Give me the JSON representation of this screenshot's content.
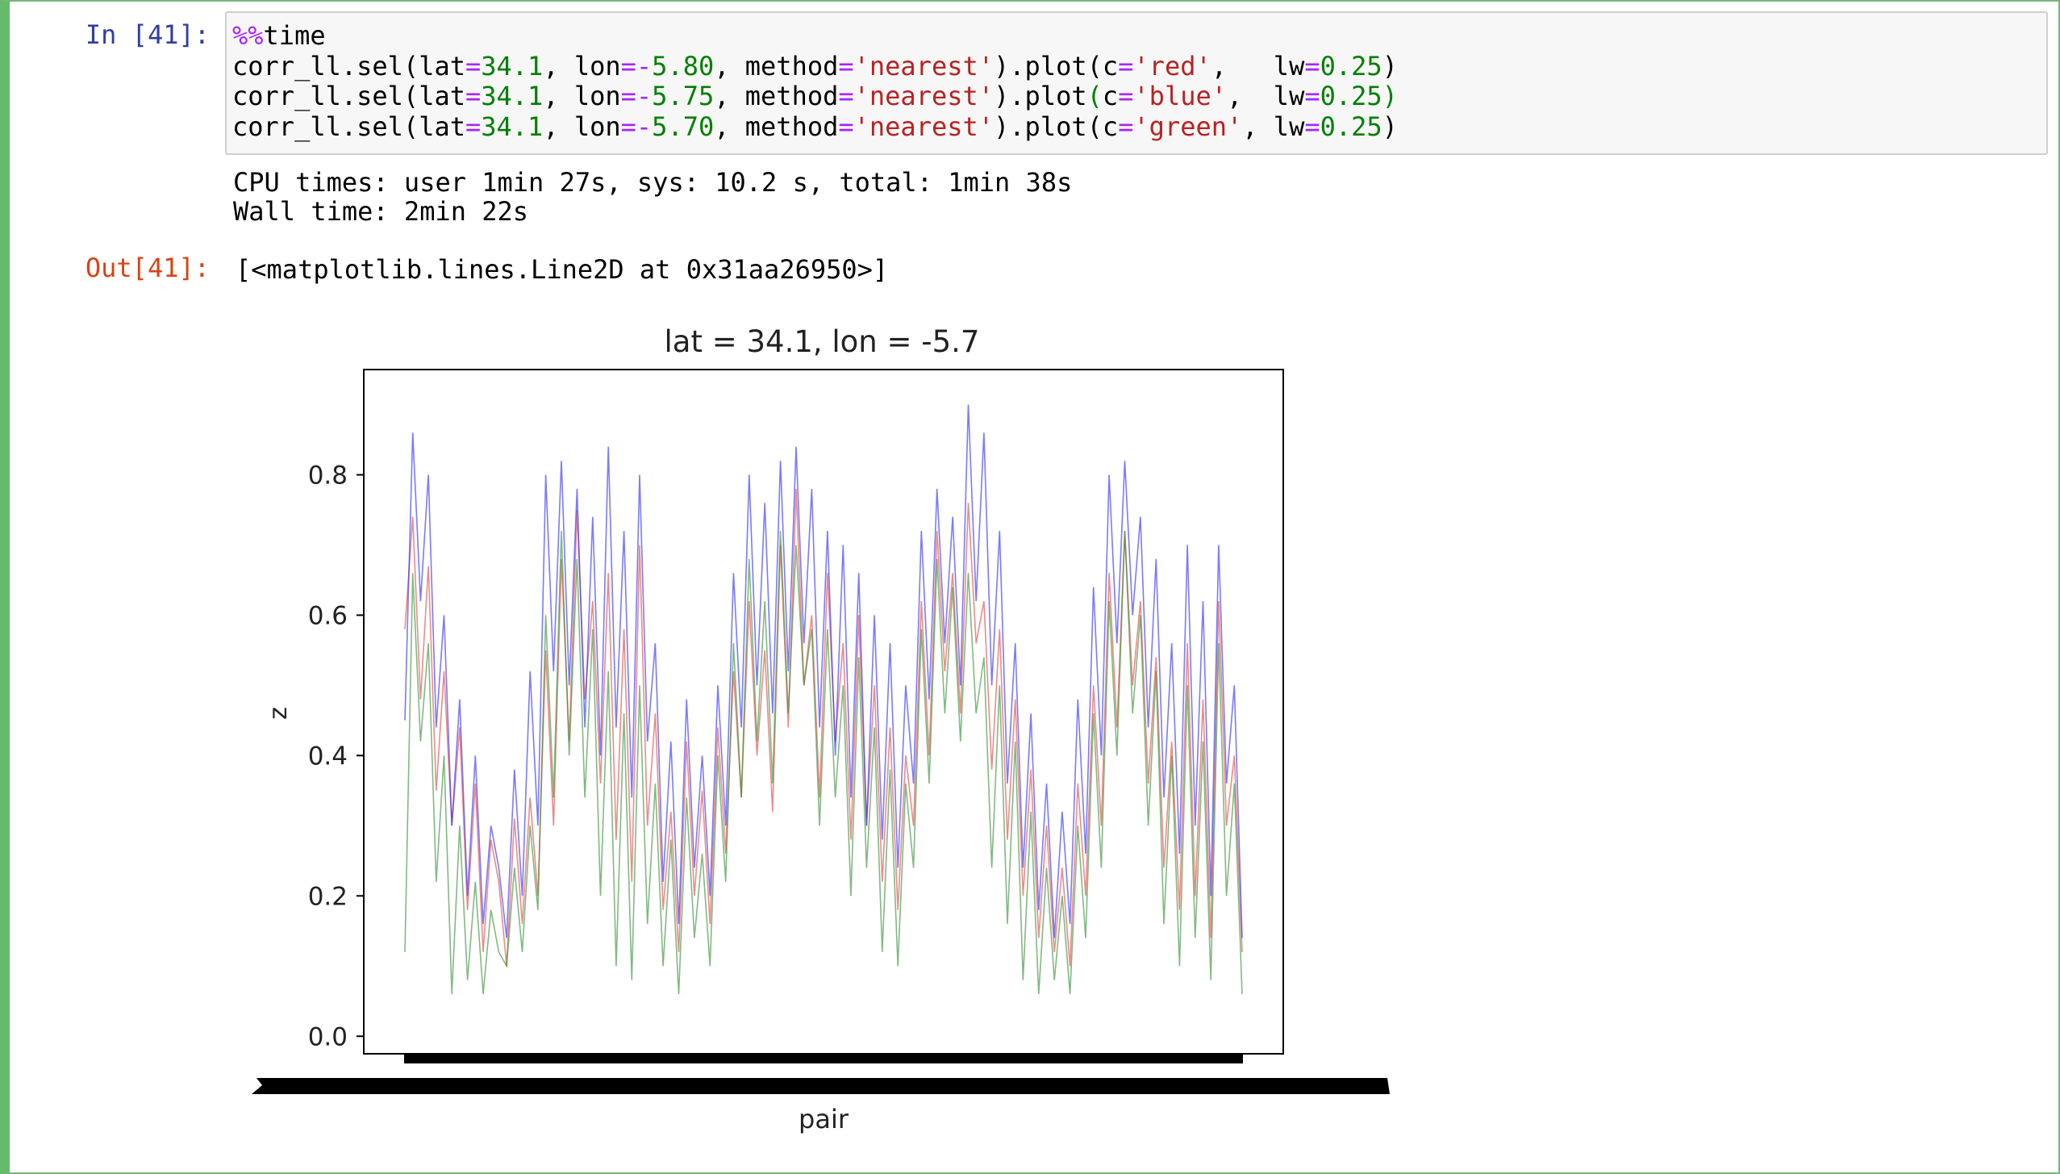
{
  "cell": {
    "in_prompt": "In [41]:",
    "out_prompt": "Out[41]:",
    "code_lines": [
      [
        [
          "magic",
          "%%"
        ],
        [
          "",
          "time"
        ]
      ],
      [
        [
          "",
          "corr_ll.sel(lat"
        ],
        [
          "op",
          "="
        ],
        [
          "num",
          "34.1"
        ],
        [
          "",
          ", lon"
        ],
        [
          "op",
          "=-"
        ],
        [
          "num",
          "5.80"
        ],
        [
          "",
          ", method"
        ],
        [
          "op",
          "="
        ],
        [
          "str",
          "'nearest'"
        ],
        [
          "",
          ").plot(c"
        ],
        [
          "op",
          "="
        ],
        [
          "str",
          "'red'"
        ],
        [
          "",
          ",   lw"
        ],
        [
          "op",
          "="
        ],
        [
          "num",
          "0.25"
        ],
        [
          "",
          ")"
        ]
      ],
      [
        [
          "",
          "corr_ll.sel(lat"
        ],
        [
          "op",
          "="
        ],
        [
          "num",
          "34.1"
        ],
        [
          "",
          ", lon"
        ],
        [
          "op",
          "=-"
        ],
        [
          "num",
          "5.75"
        ],
        [
          "",
          ", method"
        ],
        [
          "op",
          "="
        ],
        [
          "str",
          "'nearest'"
        ],
        [
          "",
          ").plot"
        ],
        [
          "num",
          "("
        ],
        [
          "",
          "c"
        ],
        [
          "op",
          "="
        ],
        [
          "str",
          "'blue'"
        ],
        [
          "",
          ",  lw"
        ],
        [
          "op",
          "="
        ],
        [
          "num",
          "0.25)"
        ]
      ],
      [
        [
          "",
          "corr_ll.sel(lat"
        ],
        [
          "op",
          "="
        ],
        [
          "num",
          "34.1"
        ],
        [
          "",
          ", lon"
        ],
        [
          "op",
          "=-"
        ],
        [
          "num",
          "5.70"
        ],
        [
          "",
          ", method"
        ],
        [
          "op",
          "="
        ],
        [
          "str",
          "'nearest'"
        ],
        [
          "",
          ").plot(c"
        ],
        [
          "op",
          "="
        ],
        [
          "str",
          "'green'"
        ],
        [
          "",
          ", lw"
        ],
        [
          "op",
          "="
        ],
        [
          "num",
          "0.25"
        ],
        [
          "",
          ")"
        ]
      ]
    ],
    "stream_output": [
      "CPU times: user 1min 27s, sys: 10.2 s, total: 1min 38s",
      "Wall time: 2min 22s"
    ],
    "repr_output": "[<matplotlib.lines.Line2D at 0x31aa26950>]"
  },
  "colors": {
    "cell_border": "#66bb6a",
    "in_prompt": "#303f9f",
    "out_prompt": "#d84315",
    "series_red": "#e0403a",
    "series_blue": "#2222ff",
    "series_green": "#2e8b2e"
  },
  "chart_data": {
    "type": "line",
    "title": "lat = 34.1, lon = -5.7",
    "xlabel": "pair",
    "ylabel": "z",
    "ylim": [
      -0.025,
      0.95
    ],
    "yticks": [
      "0.0",
      "0.2",
      "0.4",
      "0.6",
      "0.8"
    ],
    "grid": false,
    "legend": "none",
    "series": [
      {
        "color": "red",
        "values": [
          0.58,
          0.74,
          0.48,
          0.67,
          0.35,
          0.52,
          0.3,
          0.44,
          0.18,
          0.36,
          0.12,
          0.28,
          0.22,
          0.1,
          0.31,
          0.16,
          0.34,
          0.2,
          0.55,
          0.3,
          0.68,
          0.42,
          0.75,
          0.48,
          0.62,
          0.36,
          0.66,
          0.28,
          0.58,
          0.22,
          0.7,
          0.3,
          0.46,
          0.18,
          0.32,
          0.12,
          0.42,
          0.2,
          0.35,
          0.16,
          0.44,
          0.26,
          0.52,
          0.34,
          0.62,
          0.4,
          0.55,
          0.32,
          0.7,
          0.44,
          0.78,
          0.5,
          0.6,
          0.34,
          0.66,
          0.42,
          0.56,
          0.28,
          0.6,
          0.3,
          0.5,
          0.22,
          0.44,
          0.18,
          0.4,
          0.3,
          0.62,
          0.4,
          0.72,
          0.52,
          0.66,
          0.46,
          0.76,
          0.56,
          0.62,
          0.38,
          0.58,
          0.28,
          0.48,
          0.2,
          0.38,
          0.14,
          0.3,
          0.12,
          0.24,
          0.1,
          0.36,
          0.2,
          0.5,
          0.3,
          0.66,
          0.44,
          0.72,
          0.5,
          0.62,
          0.36,
          0.54,
          0.24,
          0.42,
          0.18,
          0.56,
          0.2,
          0.48,
          0.14,
          0.62,
          0.3,
          0.4,
          0.12
        ]
      },
      {
        "color": "blue",
        "values": [
          0.45,
          0.86,
          0.62,
          0.8,
          0.44,
          0.6,
          0.3,
          0.48,
          0.2,
          0.4,
          0.16,
          0.3,
          0.24,
          0.14,
          0.38,
          0.2,
          0.52,
          0.3,
          0.8,
          0.52,
          0.82,
          0.5,
          0.78,
          0.44,
          0.74,
          0.4,
          0.84,
          0.44,
          0.72,
          0.34,
          0.8,
          0.42,
          0.56,
          0.22,
          0.42,
          0.16,
          0.48,
          0.24,
          0.4,
          0.2,
          0.5,
          0.3,
          0.66,
          0.44,
          0.8,
          0.5,
          0.76,
          0.46,
          0.82,
          0.52,
          0.84,
          0.56,
          0.78,
          0.44,
          0.72,
          0.4,
          0.7,
          0.34,
          0.66,
          0.3,
          0.6,
          0.28,
          0.56,
          0.24,
          0.5,
          0.36,
          0.72,
          0.48,
          0.78,
          0.56,
          0.74,
          0.5,
          0.9,
          0.62,
          0.86,
          0.5,
          0.72,
          0.36,
          0.56,
          0.24,
          0.46,
          0.18,
          0.36,
          0.14,
          0.32,
          0.16,
          0.48,
          0.26,
          0.64,
          0.4,
          0.8,
          0.56,
          0.82,
          0.6,
          0.74,
          0.44,
          0.68,
          0.34,
          0.56,
          0.26,
          0.7,
          0.3,
          0.62,
          0.2,
          0.7,
          0.36,
          0.5,
          0.14
        ]
      },
      {
        "color": "green",
        "values": [
          0.12,
          0.66,
          0.42,
          0.56,
          0.22,
          0.4,
          0.06,
          0.3,
          0.08,
          0.22,
          0.06,
          0.18,
          0.12,
          0.1,
          0.24,
          0.12,
          0.3,
          0.18,
          0.6,
          0.34,
          0.72,
          0.4,
          0.68,
          0.34,
          0.58,
          0.2,
          0.52,
          0.1,
          0.46,
          0.08,
          0.5,
          0.16,
          0.36,
          0.1,
          0.28,
          0.06,
          0.34,
          0.14,
          0.26,
          0.1,
          0.4,
          0.22,
          0.56,
          0.34,
          0.68,
          0.42,
          0.62,
          0.36,
          0.72,
          0.46,
          0.7,
          0.5,
          0.58,
          0.3,
          0.58,
          0.34,
          0.5,
          0.2,
          0.54,
          0.24,
          0.44,
          0.12,
          0.38,
          0.1,
          0.36,
          0.24,
          0.58,
          0.36,
          0.68,
          0.46,
          0.64,
          0.42,
          0.66,
          0.46,
          0.54,
          0.24,
          0.5,
          0.16,
          0.42,
          0.08,
          0.32,
          0.06,
          0.24,
          0.08,
          0.2,
          0.06,
          0.3,
          0.14,
          0.46,
          0.24,
          0.62,
          0.4,
          0.72,
          0.46,
          0.6,
          0.3,
          0.52,
          0.16,
          0.4,
          0.1,
          0.5,
          0.14,
          0.42,
          0.08,
          0.56,
          0.2,
          0.36,
          0.06
        ]
      }
    ]
  }
}
